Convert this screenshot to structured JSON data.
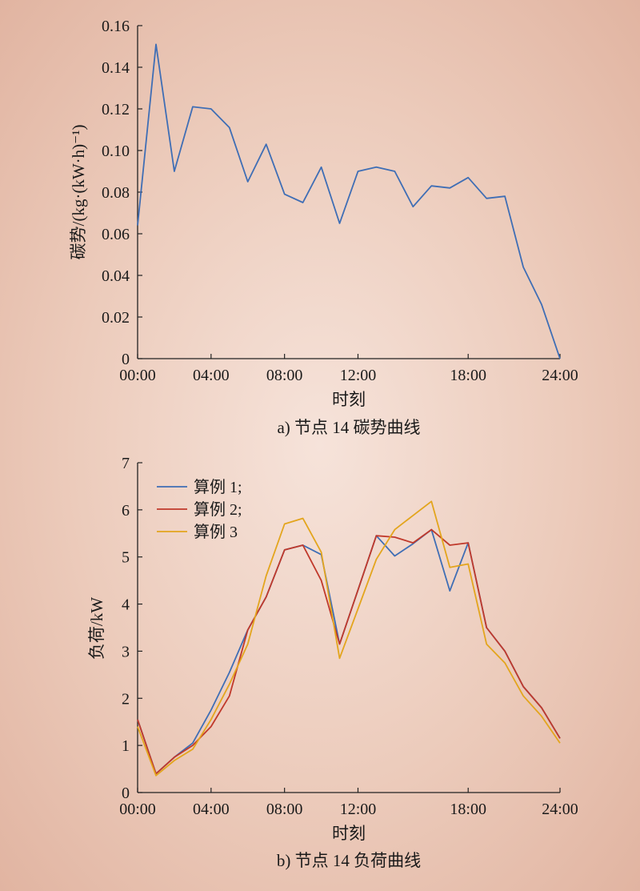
{
  "chart_data": [
    {
      "type": "line",
      "caption": "a) 节点 14 碳势曲线",
      "xlabel": "时刻",
      "ylabel": "碳势/(kg·(kW·h)⁻¹)",
      "x_ticks": [
        "00:00",
        "04:00",
        "08:00",
        "12:00",
        "18:00",
        "24:00"
      ],
      "y_ticks": [
        "0",
        "0.02",
        "0.04",
        "0.06",
        "0.08",
        "0.10",
        "0.12",
        "0.14",
        "0.16"
      ],
      "ylim": [
        0,
        0.16
      ],
      "x": [
        1,
        2,
        3,
        4,
        5,
        6,
        7,
        8,
        9,
        10,
        11,
        12,
        13,
        14,
        15,
        16,
        17,
        18,
        19,
        20,
        21,
        22,
        23,
        24
      ],
      "series": [
        {
          "color": "#3f6eb5",
          "values": [
            0.064,
            0.151,
            0.09,
            0.121,
            0.12,
            0.111,
            0.085,
            0.103,
            0.079,
            0.075,
            0.092,
            0.065,
            0.09,
            0.092,
            0.09,
            0.073,
            0.083,
            0.082,
            0.087,
            0.077,
            0.078,
            0.044,
            0.026,
            0.0
          ]
        }
      ]
    },
    {
      "type": "line",
      "caption": "b) 节点 14 负荷曲线",
      "xlabel": "时刻",
      "ylabel": "负荷/kW",
      "x_ticks": [
        "00:00",
        "04:00",
        "08:00",
        "12:00",
        "18:00",
        "24:00"
      ],
      "y_ticks": [
        "0",
        "1",
        "2",
        "3",
        "4",
        "5",
        "6",
        "7"
      ],
      "ylim": [
        0,
        7
      ],
      "legend": "top-left",
      "x": [
        1,
        2,
        3,
        4,
        5,
        6,
        7,
        8,
        9,
        10,
        11,
        12,
        13,
        14,
        15,
        16,
        17,
        18,
        19,
        20,
        21,
        22,
        23,
        24
      ],
      "series": [
        {
          "name": "算例 1;",
          "color": "#3f6eb5",
          "values": [
            1.55,
            0.4,
            0.75,
            1.05,
            1.75,
            2.55,
            3.45,
            4.15,
            5.15,
            5.25,
            5.05,
            3.15,
            4.3,
            5.45,
            5.02,
            5.28,
            5.58,
            4.28,
            5.3,
            3.5,
            3.0,
            2.25,
            1.8,
            1.15
          ]
        },
        {
          "name": "算例 2;",
          "color": "#c0392b",
          "values": [
            1.55,
            0.4,
            0.75,
            1.0,
            1.4,
            2.05,
            3.45,
            4.15,
            5.15,
            5.25,
            4.5,
            3.15,
            4.3,
            5.45,
            5.42,
            5.3,
            5.58,
            5.25,
            5.3,
            3.5,
            3.0,
            2.25,
            1.8,
            1.15
          ]
        },
        {
          "name": "算例 3",
          "color": "#e3a51d",
          "values": [
            1.4,
            0.36,
            0.68,
            0.92,
            1.55,
            2.3,
            3.15,
            4.6,
            5.7,
            5.82,
            5.1,
            2.85,
            3.9,
            4.95,
            5.58,
            5.88,
            6.18,
            4.78,
            4.85,
            3.15,
            2.75,
            2.05,
            1.62,
            1.05
          ]
        }
      ]
    }
  ]
}
